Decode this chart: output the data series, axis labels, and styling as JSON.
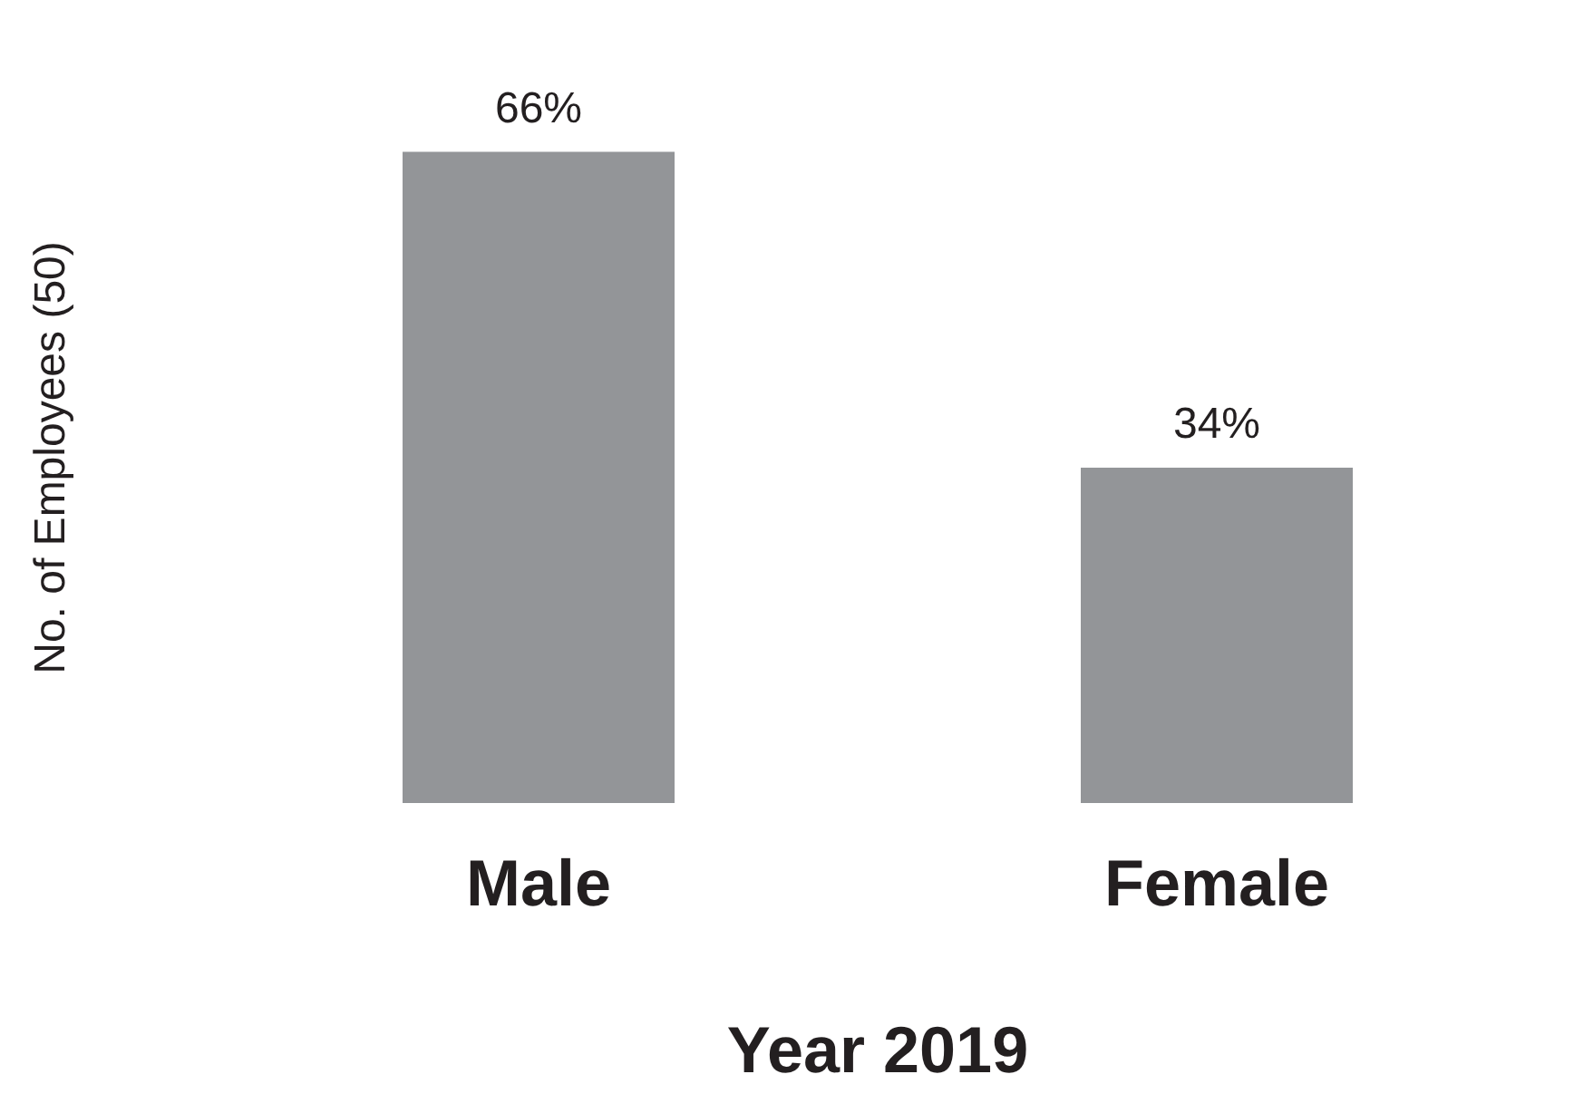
{
  "chart_data": {
    "type": "bar",
    "xlabel": "Year 2019",
    "ylabel": "No. of Employees (50)",
    "categories": [
      "Male",
      "Female"
    ],
    "values": [
      66,
      34
    ],
    "value_labels": [
      "66%",
      "34%"
    ],
    "color": "#939598"
  }
}
